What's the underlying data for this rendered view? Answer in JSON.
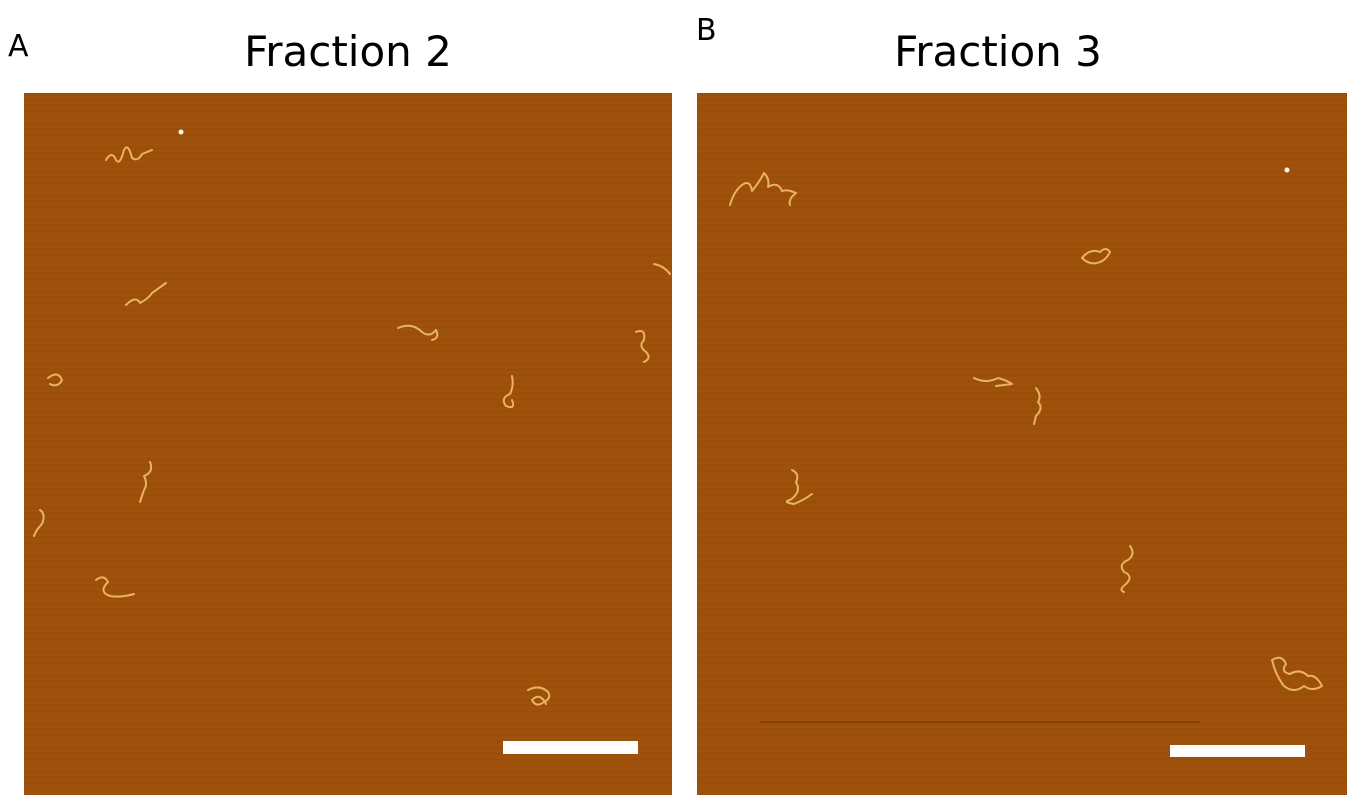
{
  "panels": [
    {
      "label": "A",
      "title": "Fraction 2"
    },
    {
      "label": "B",
      "title": "Fraction 3"
    }
  ]
}
